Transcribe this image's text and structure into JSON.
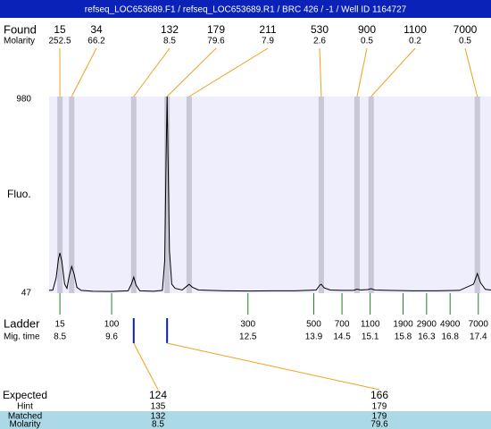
{
  "title": "refseq_LOC653689.F1 / refseq_LOC653689.R1 / BRC 426 / -1 / Well ID 1164727",
  "chart_data": {
    "type": "line",
    "ylabel": "Fluo.",
    "xlim": [
      8.27,
      17.67
    ],
    "ylim": [
      47,
      980
    ],
    "yticks": [
      47,
      980
    ],
    "color": "#000000",
    "x": [
      8.27,
      8.35,
      8.42,
      8.47,
      8.5,
      8.54,
      8.6,
      8.65,
      8.7,
      8.75,
      8.8,
      8.86,
      8.95,
      9.2,
      9.6,
      9.95,
      10.02,
      10.07,
      10.12,
      10.2,
      10.5,
      10.68,
      10.73,
      10.76,
      10.78,
      10.8,
      10.83,
      10.88,
      10.95,
      11.1,
      11.2,
      11.25,
      11.32,
      11.45,
      12,
      12.5,
      13,
      13.5,
      13.95,
      14.03,
      14.06,
      14.12,
      14.25,
      14.5,
      14.75,
      14.82,
      14.9,
      15.05,
      15.12,
      15.2,
      15.5,
      16,
      16.5,
      17,
      17.3,
      17.38,
      17.45,
      17.55,
      17.67
    ],
    "values": [
      60,
      62,
      120,
      210,
      238,
      200,
      90,
      70,
      130,
      174,
      140,
      75,
      60,
      56,
      55,
      58,
      90,
      123,
      85,
      58,
      56,
      60,
      200,
      700,
      980,
      700,
      250,
      90,
      70,
      62,
      80,
      89,
      75,
      62,
      58,
      57,
      58,
      58,
      62,
      85,
      89,
      72,
      62,
      60,
      60,
      66,
      62,
      64,
      68,
      62,
      60,
      58,
      58,
      60,
      90,
      140,
      95,
      65,
      62
    ],
    "found": {
      "label": "Found",
      "molarity_label": "Molarity",
      "sizes": [
        15,
        34,
        132,
        179,
        211,
        530,
        900,
        1100,
        7000
      ],
      "molarity": [
        252.5,
        66.2,
        8.5,
        79.6,
        7.9,
        2.6,
        0.5,
        0.2,
        0.5
      ],
      "times": [
        8.5,
        8.75,
        10.07,
        10.78,
        11.25,
        14.06,
        14.82,
        15.12,
        17.38
      ]
    },
    "ladder": {
      "label": "Ladder",
      "time_label": "Mig. time",
      "sizes": [
        15,
        100,
        300,
        500,
        700,
        1100,
        1900,
        2900,
        4900,
        7000
      ],
      "times": [
        8.5,
        9.6,
        12.5,
        13.9,
        14.5,
        15.1,
        15.8,
        16.3,
        16.8,
        17.4
      ]
    },
    "expected": {
      "labels": [
        "Expected",
        "Hint",
        "Matched",
        "Molarity"
      ],
      "columns": [
        [
          124,
          135,
          132,
          8.5
        ],
        [
          166,
          179,
          179,
          79.6
        ]
      ]
    }
  }
}
